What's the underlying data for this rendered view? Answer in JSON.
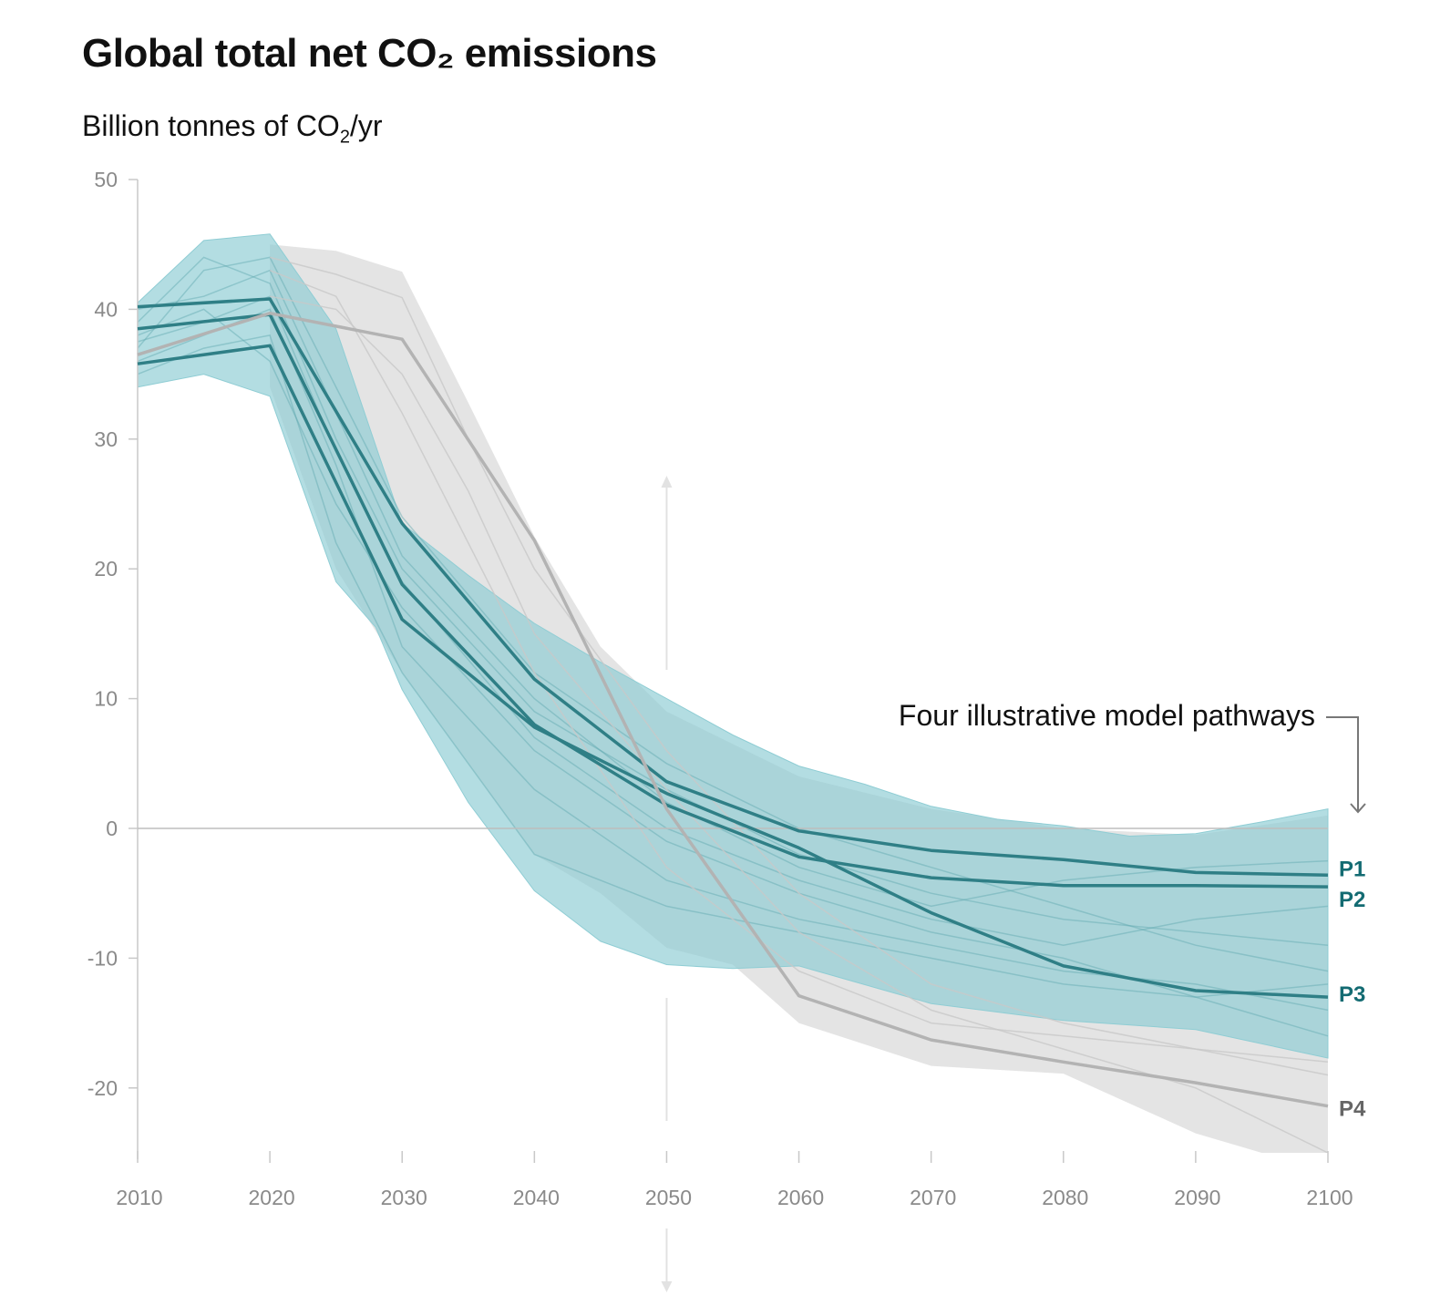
{
  "chart_data": {
    "type": "line",
    "title": "Global total net CO₂ emissions",
    "ylabel_main": "Billion tonnes of CO",
    "ylabel_sub": "2",
    "ylabel_tail": "/yr",
    "xlim": [
      2010,
      2100
    ],
    "ylim": [
      -25,
      50
    ],
    "x_ticks": [
      2010,
      2020,
      2030,
      2040,
      2050,
      2060,
      2070,
      2080,
      2090,
      2100
    ],
    "y_ticks": [
      50,
      40,
      30,
      20,
      10,
      0,
      -10,
      -20
    ],
    "grid": false,
    "annotation": "Four illustrative model pathways",
    "colors": {
      "teal_line": "#2f7f86",
      "teal_band": "#8fcdd4",
      "gray_line": "#b3b3b3",
      "gray_band": "#d9d9d9",
      "p_label_teal": "#136b72",
      "p_label_gray": "#666666"
    },
    "envelopes": [
      {
        "group": "gray",
        "upper": [
          [
            2020,
            45
          ],
          [
            2025,
            44.5
          ],
          [
            2030,
            42.9
          ],
          [
            2035,
            32.8
          ],
          [
            2040,
            22.5
          ],
          [
            2045,
            14
          ],
          [
            2050,
            9
          ],
          [
            2060,
            4
          ],
          [
            2070,
            1.5
          ],
          [
            2080,
            0
          ],
          [
            2090,
            -0.5
          ],
          [
            2100,
            1
          ]
        ],
        "lower": [
          [
            2100,
            -25
          ],
          [
            2095,
            -25
          ],
          [
            2090,
            -23.5
          ],
          [
            2080,
            -18.9
          ],
          [
            2070,
            -18.3
          ],
          [
            2060,
            -15
          ],
          [
            2055,
            -10.5
          ],
          [
            2050,
            -9.2
          ],
          [
            2045,
            -5
          ],
          [
            2040,
            -2
          ],
          [
            2035,
            5
          ],
          [
            2030,
            12
          ],
          [
            2025,
            20
          ],
          [
            2020,
            34
          ]
        ]
      },
      {
        "group": "teal",
        "upper": [
          [
            2010,
            40.5
          ],
          [
            2015,
            45.3
          ],
          [
            2020,
            45.8
          ],
          [
            2025,
            38.5
          ],
          [
            2030,
            23.5
          ],
          [
            2035,
            19.5
          ],
          [
            2040,
            15.8
          ],
          [
            2045,
            12.8
          ],
          [
            2050,
            10
          ],
          [
            2055,
            7.2
          ],
          [
            2060,
            4.8
          ],
          [
            2065,
            3.4
          ],
          [
            2070,
            1.7
          ],
          [
            2075,
            0.7
          ],
          [
            2080,
            0.2
          ],
          [
            2085,
            -0.6
          ],
          [
            2090,
            -0.4
          ],
          [
            2095,
            0.5
          ],
          [
            2100,
            1.5
          ]
        ],
        "lower": [
          [
            2100,
            -17.7
          ],
          [
            2090,
            -15.5
          ],
          [
            2080,
            -14.8
          ],
          [
            2070,
            -13.5
          ],
          [
            2060,
            -10.6
          ],
          [
            2055,
            -10.8
          ],
          [
            2050,
            -10.5
          ],
          [
            2045,
            -8.7
          ],
          [
            2040,
            -4.8
          ],
          [
            2035,
            2
          ],
          [
            2030,
            10.7
          ],
          [
            2028,
            15.5
          ],
          [
            2025,
            19
          ],
          [
            2020,
            33.3
          ],
          [
            2015,
            35
          ],
          [
            2010,
            34
          ]
        ]
      }
    ],
    "ensemble": [
      {
        "group": "teal",
        "points": [
          [
            2010,
            39
          ],
          [
            2015,
            44
          ],
          [
            2020,
            42
          ],
          [
            2025,
            30
          ],
          [
            2030,
            20
          ],
          [
            2040,
            9
          ],
          [
            2050,
            3
          ],
          [
            2060,
            -2
          ],
          [
            2070,
            -5
          ],
          [
            2080,
            -7
          ],
          [
            2090,
            -8
          ],
          [
            2100,
            -9
          ]
        ]
      },
      {
        "group": "teal",
        "points": [
          [
            2010,
            37
          ],
          [
            2015,
            43
          ],
          [
            2020,
            44
          ],
          [
            2025,
            34
          ],
          [
            2030,
            24
          ],
          [
            2040,
            12
          ],
          [
            2050,
            5
          ],
          [
            2060,
            0
          ],
          [
            2070,
            -3
          ],
          [
            2080,
            -6
          ],
          [
            2090,
            -9
          ],
          [
            2100,
            -11
          ]
        ]
      },
      {
        "group": "teal",
        "points": [
          [
            2010,
            36
          ],
          [
            2015,
            38
          ],
          [
            2020,
            40
          ],
          [
            2025,
            28
          ],
          [
            2030,
            14
          ],
          [
            2040,
            3
          ],
          [
            2050,
            -4
          ],
          [
            2060,
            -7
          ],
          [
            2070,
            -9
          ],
          [
            2080,
            -11
          ],
          [
            2090,
            -12
          ],
          [
            2100,
            -14
          ]
        ]
      },
      {
        "group": "teal",
        "points": [
          [
            2010,
            38
          ],
          [
            2015,
            40
          ],
          [
            2020,
            36
          ],
          [
            2025,
            25
          ],
          [
            2030,
            17
          ],
          [
            2040,
            6
          ],
          [
            2050,
            -1
          ],
          [
            2060,
            -5
          ],
          [
            2070,
            -8
          ],
          [
            2080,
            -10
          ],
          [
            2090,
            -13
          ],
          [
            2100,
            -16
          ]
        ]
      },
      {
        "group": "teal",
        "points": [
          [
            2010,
            35
          ],
          [
            2015,
            37
          ],
          [
            2020,
            38
          ],
          [
            2025,
            22
          ],
          [
            2030,
            12
          ],
          [
            2040,
            -2
          ],
          [
            2050,
            -6
          ],
          [
            2060,
            -8
          ],
          [
            2070,
            -10
          ],
          [
            2080,
            -12
          ],
          [
            2090,
            -13
          ],
          [
            2100,
            -12
          ]
        ]
      },
      {
        "group": "teal",
        "points": [
          [
            2010,
            40
          ],
          [
            2015,
            41
          ],
          [
            2020,
            43
          ],
          [
            2025,
            32
          ],
          [
            2030,
            21
          ],
          [
            2040,
            10
          ],
          [
            2050,
            2
          ],
          [
            2060,
            -3
          ],
          [
            2070,
            -6
          ],
          [
            2080,
            -4
          ],
          [
            2090,
            -3
          ],
          [
            2100,
            -2.5
          ]
        ]
      },
      {
        "group": "teal",
        "points": [
          [
            2010,
            37.5
          ],
          [
            2015,
            39
          ],
          [
            2020,
            41
          ],
          [
            2025,
            29
          ],
          [
            2030,
            19
          ],
          [
            2040,
            7
          ],
          [
            2050,
            0
          ],
          [
            2060,
            -4
          ],
          [
            2070,
            -7
          ],
          [
            2080,
            -9
          ],
          [
            2090,
            -7
          ],
          [
            2100,
            -6
          ]
        ]
      },
      {
        "group": "gray",
        "points": [
          [
            2020,
            44
          ],
          [
            2025,
            42.7
          ],
          [
            2030,
            40.9
          ],
          [
            2035,
            30
          ],
          [
            2040,
            20
          ],
          [
            2050,
            6
          ],
          [
            2060,
            -5
          ],
          [
            2070,
            -12
          ],
          [
            2080,
            -15
          ],
          [
            2090,
            -17
          ],
          [
            2100,
            -18
          ]
        ]
      },
      {
        "group": "gray",
        "points": [
          [
            2020,
            41
          ],
          [
            2025,
            40
          ],
          [
            2030,
            35
          ],
          [
            2035,
            26
          ],
          [
            2040,
            15
          ],
          [
            2050,
            3
          ],
          [
            2060,
            -8
          ],
          [
            2070,
            -14
          ],
          [
            2080,
            -17
          ],
          [
            2090,
            -20
          ],
          [
            2100,
            -25
          ]
        ]
      },
      {
        "group": "gray",
        "points": [
          [
            2020,
            43
          ],
          [
            2025,
            41
          ],
          [
            2030,
            32
          ],
          [
            2040,
            12
          ],
          [
            2050,
            -3
          ],
          [
            2060,
            -11
          ],
          [
            2070,
            -15
          ],
          [
            2080,
            -16
          ],
          [
            2090,
            -17
          ],
          [
            2100,
            -19
          ]
        ]
      }
    ],
    "series": [
      {
        "name": "P1",
        "group": "teal",
        "points": [
          [
            2010,
            40.2
          ],
          [
            2020,
            40.8
          ],
          [
            2030,
            23.5
          ],
          [
            2040,
            11.5
          ],
          [
            2050,
            3.6
          ],
          [
            2060,
            -0.2
          ],
          [
            2070,
            -1.7
          ],
          [
            2080,
            -2.4
          ],
          [
            2090,
            -3.4
          ],
          [
            2100,
            -3.6
          ]
        ]
      },
      {
        "name": "P2",
        "group": "teal",
        "points": [
          [
            2010,
            38.5
          ],
          [
            2020,
            39.6
          ],
          [
            2030,
            18.8
          ],
          [
            2040,
            8
          ],
          [
            2050,
            1.8
          ],
          [
            2060,
            -2.2
          ],
          [
            2070,
            -3.8
          ],
          [
            2080,
            -4.4
          ],
          [
            2090,
            -4.4
          ],
          [
            2100,
            -4.5
          ]
        ]
      },
      {
        "name": "P3",
        "group": "teal",
        "points": [
          [
            2010,
            35.8
          ],
          [
            2020,
            37.2
          ],
          [
            2030,
            16.1
          ],
          [
            2040,
            7.8
          ],
          [
            2050,
            2.7
          ],
          [
            2060,
            -1.5
          ],
          [
            2070,
            -6.5
          ],
          [
            2080,
            -10.6
          ],
          [
            2090,
            -12.5
          ],
          [
            2100,
            -13
          ]
        ]
      },
      {
        "name": "P4",
        "group": "gray",
        "points": [
          [
            2010,
            36.5
          ],
          [
            2020,
            39.7
          ],
          [
            2030,
            37.7
          ],
          [
            2040,
            22.2
          ],
          [
            2050,
            1.5
          ],
          [
            2060,
            -12.9
          ],
          [
            2070,
            -16.3
          ],
          [
            2080,
            -18
          ],
          [
            2090,
            -19.6
          ],
          [
            2100,
            -21.4
          ]
        ]
      }
    ]
  }
}
